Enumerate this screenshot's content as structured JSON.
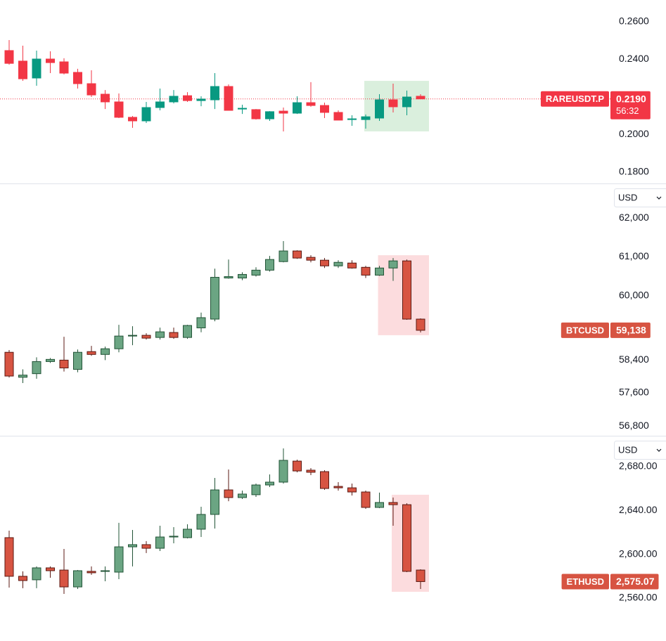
{
  "chart_data": [
    {
      "type": "candlestick",
      "symbol": "RAREUSDT.P",
      "last_price": {
        "value": 0.219,
        "label": "0.2190"
      },
      "countdown": "56:32",
      "ylim": [
        0.1744,
        0.2716
      ],
      "log_scale": false,
      "yticks": [
        {
          "value": 0.26,
          "label": "0.2600"
        },
        {
          "value": 0.24,
          "label": "0.2400"
        },
        {
          "value": 0.2,
          "label": "0.2000"
        },
        {
          "value": 0.18,
          "label": "0.1800"
        }
      ],
      "up_color": "#089981",
      "down_color": "#f23645",
      "price_line": true,
      "highlight": {
        "start": 26,
        "end": 30,
        "color": "#d3ecd7"
      },
      "open": [
        0.2447,
        0.2391,
        0.2301,
        0.2402,
        0.2387,
        0.2331,
        0.2271,
        0.2215,
        0.2174,
        0.2092,
        0.2073,
        0.2144,
        0.2174,
        0.2207,
        0.2181,
        0.2185,
        0.2256,
        0.2136,
        0.2133,
        0.2084,
        0.2125,
        0.2114,
        0.217,
        0.2155,
        0.2118,
        0.208,
        0.208,
        0.2088,
        0.2185,
        0.2148,
        0.2204
      ],
      "high": [
        0.2503,
        0.2473,
        0.2447,
        0.2443,
        0.2406,
        0.235,
        0.2342,
        0.2237,
        0.2219,
        0.2099,
        0.2174,
        0.2245,
        0.2237,
        0.2226,
        0.2204,
        0.2327,
        0.2267,
        0.2159,
        0.2136,
        0.2125,
        0.2144,
        0.2204,
        0.2279,
        0.217,
        0.2129,
        0.2103,
        0.2107,
        0.2215,
        0.2271,
        0.2234,
        0.2215
      ],
      "low": [
        0.2372,
        0.2286,
        0.226,
        0.2327,
        0.232,
        0.2245,
        0.22,
        0.2136,
        0.2088,
        0.2036,
        0.2062,
        0.2129,
        0.2166,
        0.2174,
        0.2151,
        0.2136,
        0.2129,
        0.211,
        0.208,
        0.2073,
        0.2017,
        0.211,
        0.2148,
        0.2088,
        0.2077,
        0.2047,
        0.2032,
        0.2073,
        0.2118,
        0.2103,
        0.2189
      ],
      "close": [
        0.2379,
        0.2297,
        0.2402,
        0.2383,
        0.2327,
        0.2271,
        0.2211,
        0.2174,
        0.2092,
        0.2073,
        0.2144,
        0.2174,
        0.2204,
        0.2181,
        0.2189,
        0.2256,
        0.2129,
        0.214,
        0.2084,
        0.2122,
        0.2114,
        0.217,
        0.2155,
        0.2118,
        0.2077,
        0.2084,
        0.2095,
        0.2185,
        0.2148,
        0.22,
        0.219
      ]
    },
    {
      "type": "candlestick",
      "symbol": "BTCUSD",
      "last_price": {
        "value": 59138,
        "label": "59,138"
      },
      "currency": "USD",
      "ylim": [
        56570,
        62890
      ],
      "log_scale": true,
      "yticks": [
        {
          "value": 62000,
          "label": "62,000"
        },
        {
          "value": 61000,
          "label": "61,000"
        },
        {
          "value": 60000,
          "label": "60,000"
        },
        {
          "value": 58400,
          "label": "58,400"
        },
        {
          "value": 57600,
          "label": "57,600"
        },
        {
          "value": 56800,
          "label": "56,800"
        }
      ],
      "up_color": "#6ba583",
      "down_color": "#d75442",
      "up_border_color": "#225437",
      "down_border_color": "#5b1a13",
      "price_line": false,
      "highlight": {
        "start": 27,
        "end": 30,
        "color": "#fbd6d8"
      },
      "open": [
        58593,
        57980,
        58068,
        58365,
        58400,
        58173,
        58610,
        58540,
        58680,
        58995,
        59013,
        58960,
        59083,
        58960,
        59198,
        59417,
        60454,
        60454,
        60527,
        60654,
        60873,
        61146,
        60982,
        60909,
        60763,
        60836,
        60727,
        60527,
        60709,
        60891,
        59417
      ],
      "high": [
        58648,
        58173,
        58470,
        58453,
        58978,
        58663,
        58750,
        58733,
        59275,
        59240,
        59065,
        59205,
        59205,
        59275,
        59580,
        60691,
        60927,
        60600,
        60727,
        61018,
        61400,
        61164,
        61036,
        60964,
        60909,
        60909,
        60763,
        60763,
        60964,
        60927,
        59435
      ],
      "low": [
        57975,
        57840,
        57945,
        58330,
        58120,
        58103,
        58505,
        58400,
        58593,
        58768,
        58908,
        58908,
        58925,
        58925,
        59089,
        59362,
        60436,
        60399,
        60490,
        60618,
        60854,
        60945,
        60854,
        60709,
        60709,
        60691,
        60454,
        60509,
        60381,
        59399,
        59085
      ],
      "close": [
        58010,
        58033,
        58365,
        58418,
        58208,
        58593,
        58540,
        58680,
        58995,
        59013,
        58943,
        59100,
        58960,
        59258,
        59453,
        60472,
        60490,
        60545,
        60654,
        60927,
        61146,
        60964,
        60909,
        60763,
        60854,
        60709,
        60527,
        60709,
        60891,
        59417,
        59138
      ]
    },
    {
      "type": "candlestick",
      "symbol": "ETHUSD",
      "last_price": {
        "value": 2575.07,
        "label": "2,575.07"
      },
      "currency": "USD",
      "ylim": [
        2520.8,
        2707.6
      ],
      "log_scale": false,
      "yticks": [
        {
          "value": 2680,
          "label": "2,680.00"
        },
        {
          "value": 2640,
          "label": "2,640.00"
        },
        {
          "value": 2600,
          "label": "2,600.00"
        },
        {
          "value": 2560,
          "label": "2,560.00"
        }
      ],
      "up_color": "#6ba583",
      "down_color": "#d75442",
      "up_border_color": "#225437",
      "down_border_color": "#5b1a13",
      "price_line": false,
      "highlight": {
        "start": 28,
        "end": 30,
        "color": "#fbd6d8"
      },
      "open": [
        2615.2,
        2579.9,
        2576.7,
        2587.6,
        2585.6,
        2570.2,
        2584.4,
        2584.4,
        2583.7,
        2606.8,
        2608.8,
        2605.5,
        2615.8,
        2615.2,
        2622.9,
        2636.4,
        2658.8,
        2651.8,
        2654.4,
        2663.3,
        2665.9,
        2685.1,
        2676.8,
        2675.5,
        2662.0,
        2660.7,
        2656.9,
        2642.8,
        2647.3,
        2645.3,
        2585.6
      ],
      "high": [
        2621.6,
        2584.4,
        2588.9,
        2588.9,
        2604.9,
        2585.6,
        2588.9,
        2588.9,
        2628.7,
        2622.2,
        2612.0,
        2626.1,
        2624.8,
        2627.4,
        2643.4,
        2669.7,
        2677.4,
        2658.2,
        2664.6,
        2672.9,
        2696.7,
        2686.4,
        2678.7,
        2676.8,
        2665.9,
        2664.6,
        2658.2,
        2656.3,
        2651.8,
        2646.6,
        2586.3
      ],
      "low": [
        2569.6,
        2569.0,
        2569.0,
        2578.6,
        2563.8,
        2568.3,
        2581.2,
        2575.4,
        2577.3,
        2588.9,
        2601.1,
        2603.0,
        2610.0,
        2614.5,
        2615.8,
        2623.5,
        2648.5,
        2650.5,
        2652.4,
        2661.4,
        2664.6,
        2674.9,
        2672.3,
        2658.8,
        2658.2,
        2653.7,
        2641.5,
        2642.1,
        2626.1,
        2583.7,
        2568.3
      ],
      "close": [
        2579.9,
        2576.0,
        2587.6,
        2585.0,
        2570.2,
        2585.0,
        2583.1,
        2585.0,
        2606.8,
        2608.8,
        2605.5,
        2615.8,
        2616.5,
        2622.9,
        2636.4,
        2658.8,
        2651.8,
        2655.0,
        2663.3,
        2665.9,
        2685.8,
        2676.1,
        2674.9,
        2660.1,
        2660.7,
        2656.9,
        2642.8,
        2647.3,
        2645.3,
        2584.4,
        2575.07
      ]
    }
  ]
}
